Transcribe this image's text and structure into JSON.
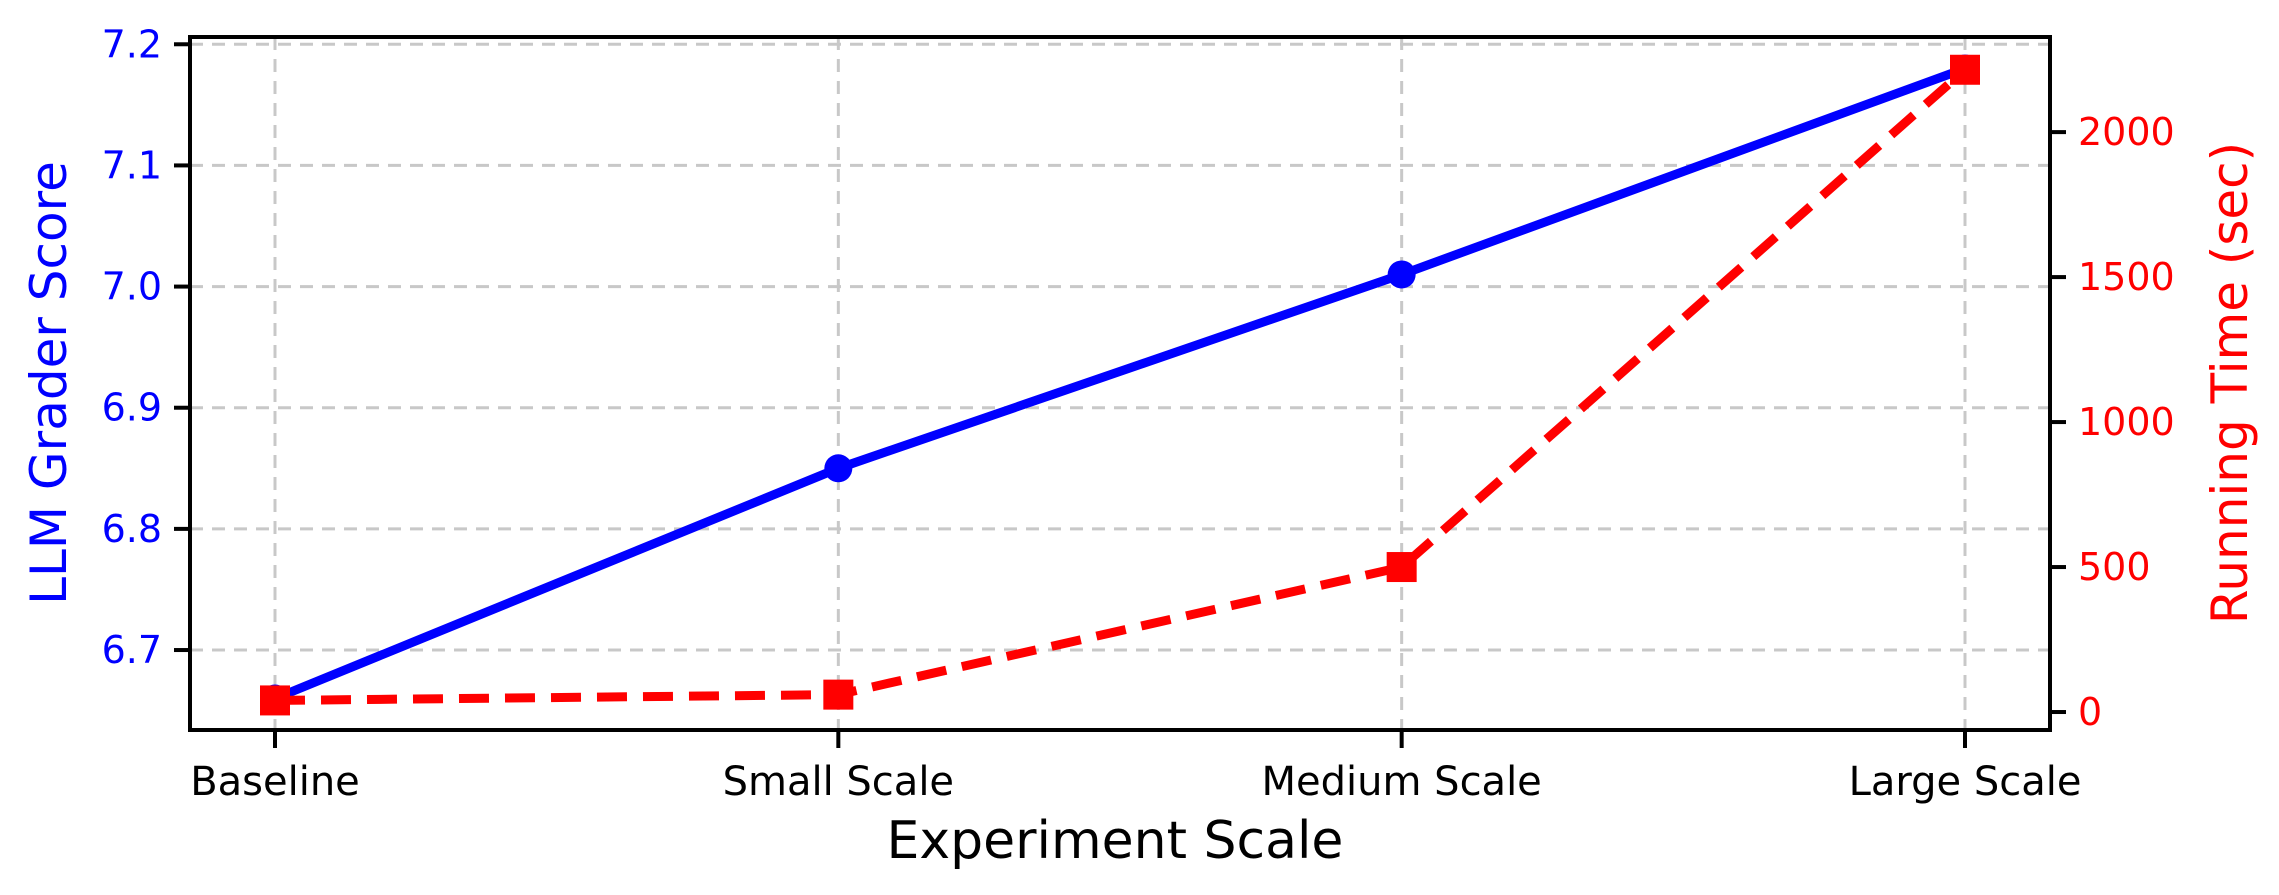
{
  "chart_data": {
    "type": "line",
    "title": "",
    "xlabel": "Experiment Scale",
    "categories": [
      "Baseline",
      "Small Scale",
      "Medium Scale",
      "Large Scale"
    ],
    "series": [
      {
        "name": "LLM Grader Score",
        "axis": "left",
        "values": [
          6.66,
          6.85,
          7.01,
          7.18
        ],
        "color": "#0000ff",
        "line_style": "solid",
        "marker": "circle"
      },
      {
        "name": "Running Time (sec)",
        "axis": "right",
        "values": [
          40,
          60,
          500,
          2215
        ],
        "color": "#ff0000",
        "line_style": "dashed",
        "marker": "square"
      }
    ],
    "axes": {
      "left": {
        "label": "LLM Grader Score",
        "color": "#0000ff",
        "min": 6.634,
        "max": 7.206,
        "ticks": [
          6.7,
          6.8,
          6.9,
          7.0,
          7.1,
          7.2
        ],
        "tick_labels": [
          "6.7",
          "6.8",
          "6.9",
          "7.0",
          "7.1",
          "7.2"
        ]
      },
      "right": {
        "label": "Running Time (sec)",
        "color": "#ff0000",
        "min": -62,
        "max": 2328,
        "ticks": [
          0,
          500,
          1000,
          1500,
          2000
        ],
        "tick_labels": [
          "0",
          "500",
          "1000",
          "1500",
          "2000"
        ]
      },
      "x": {
        "label": "Experiment Scale",
        "color": "#000000"
      }
    },
    "grid": {
      "show": true,
      "color": "#c8c8c8",
      "style": "dashed"
    },
    "legend_position": "none",
    "background": "#ffffff"
  }
}
